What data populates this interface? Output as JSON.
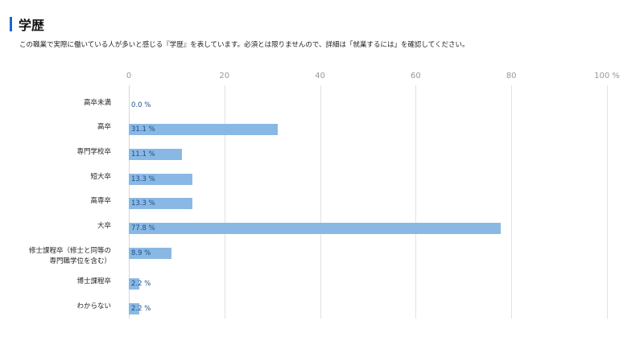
{
  "header": {
    "title": "学歴",
    "description": "この職業で実際に働いている人が多いと感じる『学歴』を表しています。必須とは限りませんので、詳細は「就業するには」を確認してください。",
    "accent_color": "#1a66d1"
  },
  "chart_data": {
    "type": "bar",
    "orientation": "horizontal",
    "title": "学歴",
    "xlabel": "",
    "ylabel": "",
    "xlim": [
      0,
      100
    ],
    "x_ticks": [
      "0",
      "20",
      "40",
      "60",
      "80",
      "100 %"
    ],
    "grid": true,
    "bar_color": "#8ab8e4",
    "label_color": "#1a4f8a",
    "categories": [
      "高卒未満",
      "高卒",
      "専門学校卒",
      "短大卒",
      "高専卒",
      "大卒",
      "修士課程卒（修士と同等の専門職学位を含む）",
      "博士課程卒",
      "わからない"
    ],
    "category_lines": [
      [
        "高卒未満"
      ],
      [
        "高卒"
      ],
      [
        "専門学校卒"
      ],
      [
        "短大卒"
      ],
      [
        "高専卒"
      ],
      [
        "大卒"
      ],
      [
        "修士課程卒（修士と同等の",
        "専門職学位を含む）"
      ],
      [
        "博士課程卒"
      ],
      [
        "わからない"
      ]
    ],
    "values": [
      0.0,
      31.1,
      11.1,
      13.3,
      13.3,
      77.8,
      8.9,
      2.2,
      2.2
    ],
    "value_labels": [
      "0.0 %",
      "31.1 %",
      "11.1 %",
      "13.3 %",
      "13.3 %",
      "77.8 %",
      "8.9 %",
      "2.2 %",
      "2.2 %"
    ]
  }
}
